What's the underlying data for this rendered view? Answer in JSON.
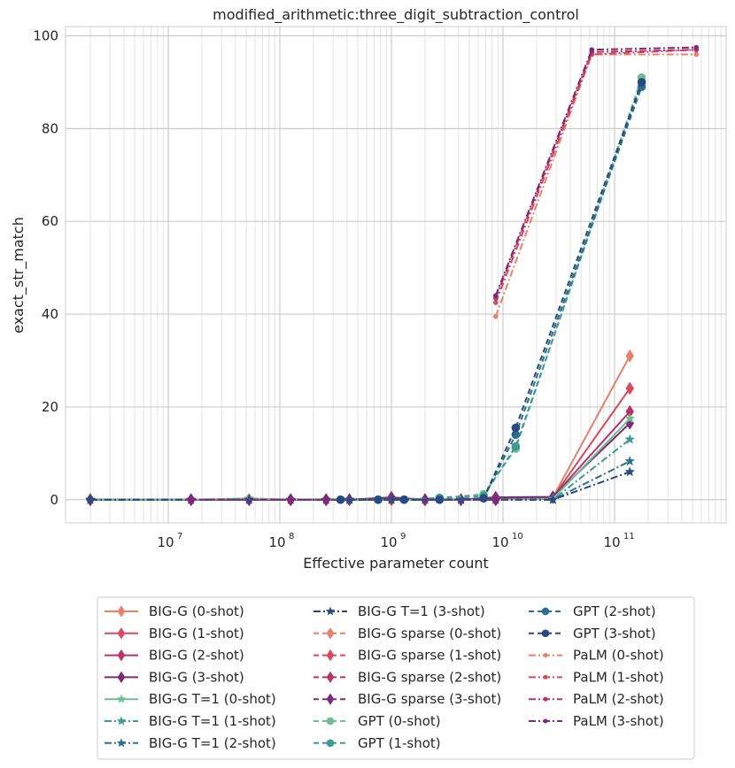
{
  "chart_data": {
    "type": "line",
    "title": "modified_arithmetic:three_digit_subtraction_control",
    "xlabel": "Effective parameter count",
    "ylabel": "exact_str_match",
    "xscale": "log",
    "xlim": [
      1200000.0,
      1000000000000.0
    ],
    "ylim": [
      -5,
      102
    ],
    "yticks": [
      0,
      20,
      40,
      60,
      80,
      100
    ],
    "ytick_labels": [
      "0",
      "20",
      "40",
      "60",
      "80",
      "100"
    ],
    "xticks": [
      10000000.0,
      100000000.0,
      1000000000.0,
      10000000000.0,
      100000000000.0
    ],
    "xtick_labels": [
      "10",
      "10",
      "10",
      "10",
      "10"
    ],
    "xtick_exponents": [
      "7",
      "8",
      "9",
      "10",
      "11"
    ],
    "grid": true,
    "legend_position": "bottom",
    "series": [
      {
        "name": "BIG-G (0-shot)",
        "color": "#e8806a",
        "dash": "",
        "marker": "diamond",
        "x": [
          2000000.0,
          16000000.0,
          53000000.0,
          125000000.0,
          260000000.0,
          420000000.0,
          1000000000.0,
          2000000000.0,
          4200000000.0,
          8600000000.0,
          28000000000.0,
          137000000000.0
        ],
        "y": [
          0,
          0,
          0,
          0,
          0,
          0,
          0,
          0,
          0,
          0.3,
          0.5,
          31
        ]
      },
      {
        "name": "BIG-G (1-shot)",
        "color": "#d9485c",
        "dash": "",
        "marker": "diamond",
        "x": [
          2000000.0,
          16000000.0,
          53000000.0,
          125000000.0,
          260000000.0,
          420000000.0,
          1000000000.0,
          2000000000.0,
          4200000000.0,
          8600000000.0,
          28000000000.0,
          137000000000.0
        ],
        "y": [
          0,
          0,
          0,
          0,
          0,
          0,
          0,
          0,
          0,
          0.3,
          0.5,
          24
        ]
      },
      {
        "name": "BIG-G (2-shot)",
        "color": "#b8336a",
        "dash": "",
        "marker": "diamond",
        "x": [
          2000000.0,
          16000000.0,
          53000000.0,
          125000000.0,
          260000000.0,
          420000000.0,
          1000000000.0,
          2000000000.0,
          4200000000.0,
          8600000000.0,
          28000000000.0,
          137000000000.0
        ],
        "y": [
          0,
          0,
          0,
          0,
          0,
          0,
          0.3,
          0,
          0,
          0.5,
          0.6,
          19
        ]
      },
      {
        "name": "BIG-G (3-shot)",
        "color": "#7e2a78",
        "dash": "",
        "marker": "diamond",
        "x": [
          2000000.0,
          16000000.0,
          53000000.0,
          125000000.0,
          260000000.0,
          420000000.0,
          1000000000.0,
          2000000000.0,
          4200000000.0,
          8600000000.0,
          28000000000.0,
          137000000000.0
        ],
        "y": [
          0,
          0,
          0,
          0,
          0,
          0,
          0.5,
          0,
          0,
          0.5,
          0.6,
          16.5
        ]
      },
      {
        "name": "BIG-G T=1 (0-shot)",
        "color": "#6cbf95",
        "dash": "",
        "marker": "star",
        "x": [
          2000000.0,
          16000000.0,
          53000000.0,
          125000000.0,
          260000000.0,
          420000000.0,
          1000000000.0,
          2000000000.0,
          4200000000.0,
          8600000000.0,
          28000000000.0,
          137000000000.0
        ],
        "y": [
          0,
          0,
          0.3,
          0,
          0,
          0,
          0,
          0,
          0,
          0,
          0.2,
          17.5
        ]
      },
      {
        "name": "BIG-G T=1 (1-shot)",
        "color": "#3d9a95",
        "dash": "8,3,2,3",
        "marker": "star",
        "x": [
          2000000.0,
          16000000.0,
          53000000.0,
          125000000.0,
          260000000.0,
          420000000.0,
          1000000000.0,
          2000000000.0,
          4200000000.0,
          8600000000.0,
          28000000000.0,
          137000000000.0
        ],
        "y": [
          0,
          0,
          0,
          0,
          0,
          0,
          0,
          0,
          0,
          0,
          0,
          13
        ]
      },
      {
        "name": "BIG-G T=1 (2-shot)",
        "color": "#2d6f8e",
        "dash": "8,3,2,3",
        "marker": "star",
        "x": [
          2000000.0,
          16000000.0,
          53000000.0,
          125000000.0,
          260000000.0,
          420000000.0,
          1000000000.0,
          2000000000.0,
          4200000000.0,
          8600000000.0,
          28000000000.0,
          137000000000.0
        ],
        "y": [
          0,
          0,
          0,
          0,
          0,
          0,
          0,
          0,
          0,
          0,
          0,
          8.3
        ]
      },
      {
        "name": "BIG-G T=1 (3-shot)",
        "color": "#274a80",
        "dash": "8,3,2,3",
        "marker": "star",
        "x": [
          2000000.0,
          16000000.0,
          53000000.0,
          125000000.0,
          260000000.0,
          420000000.0,
          1000000000.0,
          2000000000.0,
          4200000000.0,
          8600000000.0,
          28000000000.0,
          137000000000.0
        ],
        "y": [
          0,
          0,
          0,
          0,
          0,
          0,
          0,
          0,
          0,
          0,
          0,
          6
        ]
      },
      {
        "name": "BIG-G sparse (0-shot)",
        "color": "#e8806a",
        "dash": "6,4",
        "marker": "diamond",
        "x": [
          16000000.0,
          125000000.0,
          260000000.0,
          2000000000.0,
          8600000000.0
        ],
        "y": [
          0,
          0,
          0,
          0,
          0
        ]
      },
      {
        "name": "BIG-G sparse (1-shot)",
        "color": "#d9485c",
        "dash": "6,4",
        "marker": "diamond",
        "x": [
          16000000.0,
          125000000.0,
          260000000.0,
          2000000000.0,
          8600000000.0
        ],
        "y": [
          0,
          0,
          0,
          0,
          0
        ]
      },
      {
        "name": "BIG-G sparse (2-shot)",
        "color": "#b8336a",
        "dash": "6,4",
        "marker": "diamond",
        "x": [
          16000000.0,
          125000000.0,
          260000000.0,
          2000000000.0,
          8600000000.0
        ],
        "y": [
          0,
          0,
          0,
          0,
          0
        ]
      },
      {
        "name": "BIG-G sparse (3-shot)",
        "color": "#7e2a78",
        "dash": "6,4",
        "marker": "diamond",
        "x": [
          16000000.0,
          125000000.0,
          260000000.0,
          2000000000.0,
          8600000000.0
        ],
        "y": [
          0,
          0,
          0,
          0,
          0
        ]
      },
      {
        "name": "GPT (0-shot)",
        "color": "#6cbf95",
        "dash": "6,4",
        "marker": "circle",
        "x": [
          350000000.0,
          760000000.0,
          1300000000.0,
          2700000000.0,
          6700000000.0,
          13000000000.0,
          175000000000.0
        ],
        "y": [
          0,
          0,
          0,
          0.4,
          1.2,
          11,
          91
        ]
      },
      {
        "name": "GPT (1-shot)",
        "color": "#3d9a95",
        "dash": "6,4",
        "marker": "circle",
        "x": [
          350000000.0,
          760000000.0,
          1300000000.0,
          2700000000.0,
          6700000000.0,
          13000000000.0,
          175000000000.0
        ],
        "y": [
          0,
          0,
          0,
          0.4,
          0.8,
          11.5,
          90
        ]
      },
      {
        "name": "GPT (2-shot)",
        "color": "#2d6f8e",
        "dash": "6,4",
        "marker": "circle",
        "x": [
          350000000.0,
          760000000.0,
          1300000000.0,
          2700000000.0,
          6700000000.0,
          13000000000.0,
          175000000000.0
        ],
        "y": [
          0,
          0,
          0,
          0,
          0.3,
          14,
          89
        ]
      },
      {
        "name": "GPT (3-shot)",
        "color": "#274a80",
        "dash": "6,4",
        "marker": "circle",
        "x": [
          350000000.0,
          760000000.0,
          1300000000.0,
          2700000000.0,
          6700000000.0,
          13000000000.0,
          175000000000.0
        ],
        "y": [
          0,
          0,
          0,
          0,
          0.3,
          15.5,
          90
        ]
      },
      {
        "name": "PaLM (0-shot)",
        "color": "#e8806a",
        "dash": "8,3,2,3",
        "marker": "point",
        "x": [
          8600000000.0,
          62500000000.0,
          540000000000.0
        ],
        "y": [
          39.5,
          96,
          96
        ]
      },
      {
        "name": "PaLM (1-shot)",
        "color": "#d9485c",
        "dash": "8,3,2,3",
        "marker": "point",
        "x": [
          8600000000.0,
          62500000000.0,
          540000000000.0
        ],
        "y": [
          42.5,
          96,
          97
        ]
      },
      {
        "name": "PaLM (2-shot)",
        "color": "#b8336a",
        "dash": "8,3,2,3",
        "marker": "point",
        "x": [
          8600000000.0,
          62500000000.0,
          540000000000.0
        ],
        "y": [
          43.5,
          96.5,
          97
        ]
      },
      {
        "name": "PaLM (3-shot)",
        "color": "#7e2a78",
        "dash": "8,3,2,3",
        "marker": "point",
        "x": [
          8600000000.0,
          62500000000.0,
          540000000000.0
        ],
        "y": [
          44,
          97,
          97.5
        ]
      }
    ]
  }
}
